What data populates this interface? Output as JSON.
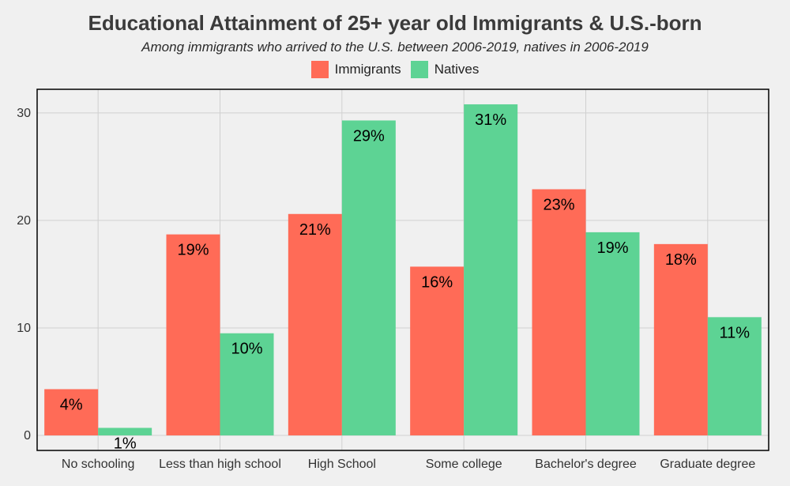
{
  "chart_data": {
    "type": "bar",
    "title": "Educational Attainment of 25+ year old Immigrants & U.S.-born",
    "subtitle": "Among immigrants who arrived to the U.S. between 2006-2019, natives in 2006-2019",
    "categories": [
      "No schooling",
      "Less than high school",
      "High School",
      "Some college",
      "Bachelor's degree",
      "Graduate degree"
    ],
    "series": [
      {
        "name": "Immigrants",
        "color": "#ff6b57",
        "values": [
          4.3,
          18.7,
          20.6,
          15.7,
          22.9,
          17.8
        ],
        "labels": [
          "4%",
          "19%",
          "21%",
          "16%",
          "23%",
          "18%"
        ]
      },
      {
        "name": "Natives",
        "color": "#5dd394",
        "values": [
          0.7,
          9.5,
          29.3,
          30.8,
          18.9,
          11.0
        ],
        "labels": [
          "1%",
          "10%",
          "29%",
          "31%",
          "19%",
          "11%"
        ]
      }
    ],
    "yticks": [
      0,
      10,
      20,
      30
    ],
    "ylim": [
      -1.4,
      32.2
    ],
    "legend_position": "top",
    "grid": true
  }
}
